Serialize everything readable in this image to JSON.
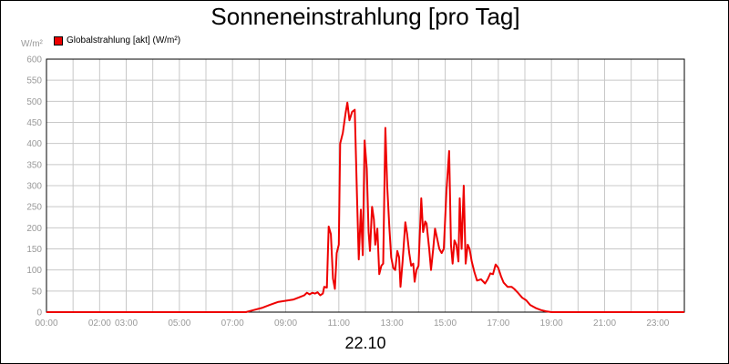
{
  "chart_data": {
    "type": "line",
    "title": "Sonneneinstrahlung [pro Tag]",
    "ylabel": "W/m²",
    "xlabel": "22.10",
    "ylim": [
      0,
      600
    ],
    "xlim": [
      0,
      24
    ],
    "grid": true,
    "legend_position": "top-left",
    "y_ticks": [
      "0",
      "50",
      "100",
      "150",
      "200",
      "250",
      "300",
      "350",
      "400",
      "450",
      "500",
      "550",
      "600"
    ],
    "x_ticks": [
      {
        "label": "00:00",
        "x": 0
      },
      {
        "label": "02:00",
        "x": 2
      },
      {
        "label": "03:00",
        "x": 3
      },
      {
        "label": "05:00",
        "x": 5
      },
      {
        "label": "07:00",
        "x": 7
      },
      {
        "label": "09:00",
        "x": 9
      },
      {
        "label": "11:00",
        "x": 11
      },
      {
        "label": "13:00",
        "x": 13
      },
      {
        "label": "15:00",
        "x": 15
      },
      {
        "label": "17:00",
        "x": 17
      },
      {
        "label": "19:00",
        "x": 19
      },
      {
        "label": "21:00",
        "x": 21
      },
      {
        "label": "23:00",
        "x": 23
      }
    ],
    "series": [
      {
        "name": "Globalstrahlung [akt] (W/m²)",
        "color": "#ee0000",
        "points": [
          [
            0,
            0
          ],
          [
            7.5,
            0
          ],
          [
            7.8,
            5
          ],
          [
            8.1,
            10
          ],
          [
            8.4,
            17
          ],
          [
            8.7,
            24
          ],
          [
            9.0,
            27
          ],
          [
            9.3,
            30
          ],
          [
            9.5,
            35
          ],
          [
            9.7,
            40
          ],
          [
            9.8,
            46
          ],
          [
            9.9,
            42
          ],
          [
            10.0,
            46
          ],
          [
            10.1,
            44
          ],
          [
            10.2,
            47
          ],
          [
            10.3,
            40
          ],
          [
            10.4,
            44
          ],
          [
            10.45,
            60
          ],
          [
            10.55,
            58
          ],
          [
            10.62,
            203
          ],
          [
            10.7,
            185
          ],
          [
            10.78,
            80
          ],
          [
            10.85,
            55
          ],
          [
            10.92,
            140
          ],
          [
            11.0,
            160
          ],
          [
            11.05,
            400
          ],
          [
            11.15,
            425
          ],
          [
            11.25,
            470
          ],
          [
            11.32,
            497
          ],
          [
            11.4,
            455
          ],
          [
            11.5,
            475
          ],
          [
            11.6,
            480
          ],
          [
            11.68,
            280
          ],
          [
            11.75,
            125
          ],
          [
            11.83,
            243
          ],
          [
            11.9,
            135
          ],
          [
            11.97,
            407
          ],
          [
            12.05,
            340
          ],
          [
            12.12,
            190
          ],
          [
            12.17,
            145
          ],
          [
            12.25,
            250
          ],
          [
            12.32,
            220
          ],
          [
            12.37,
            160
          ],
          [
            12.45,
            198
          ],
          [
            12.52,
            90
          ],
          [
            12.6,
            110
          ],
          [
            12.67,
            115
          ],
          [
            12.75,
            437
          ],
          [
            12.82,
            300
          ],
          [
            12.9,
            200
          ],
          [
            12.97,
            130
          ],
          [
            13.05,
            105
          ],
          [
            13.12,
            100
          ],
          [
            13.2,
            145
          ],
          [
            13.27,
            130
          ],
          [
            13.32,
            60
          ],
          [
            13.4,
            120
          ],
          [
            13.5,
            213
          ],
          [
            13.57,
            185
          ],
          [
            13.65,
            140
          ],
          [
            13.72,
            110
          ],
          [
            13.8,
            115
          ],
          [
            13.85,
            72
          ],
          [
            13.92,
            100
          ],
          [
            14.0,
            110
          ],
          [
            14.1,
            270
          ],
          [
            14.17,
            190
          ],
          [
            14.25,
            215
          ],
          [
            14.3,
            210
          ],
          [
            14.4,
            150
          ],
          [
            14.47,
            100
          ],
          [
            14.55,
            150
          ],
          [
            14.62,
            198
          ],
          [
            14.7,
            175
          ],
          [
            14.78,
            150
          ],
          [
            14.87,
            140
          ],
          [
            14.95,
            150
          ],
          [
            15.05,
            290
          ],
          [
            15.15,
            382
          ],
          [
            15.22,
            160
          ],
          [
            15.28,
            115
          ],
          [
            15.35,
            170
          ],
          [
            15.42,
            160
          ],
          [
            15.5,
            120
          ],
          [
            15.55,
            270
          ],
          [
            15.62,
            150
          ],
          [
            15.7,
            300
          ],
          [
            15.77,
            115
          ],
          [
            15.85,
            160
          ],
          [
            15.92,
            150
          ],
          [
            16.0,
            120
          ],
          [
            16.1,
            95
          ],
          [
            16.2,
            75
          ],
          [
            16.35,
            78
          ],
          [
            16.5,
            68
          ],
          [
            16.6,
            78
          ],
          [
            16.7,
            92
          ],
          [
            16.8,
            90
          ],
          [
            16.9,
            113
          ],
          [
            17.0,
            105
          ],
          [
            17.1,
            85
          ],
          [
            17.2,
            70
          ],
          [
            17.35,
            60
          ],
          [
            17.5,
            60
          ],
          [
            17.6,
            55
          ],
          [
            17.75,
            45
          ],
          [
            17.9,
            34
          ],
          [
            18.05,
            28
          ],
          [
            18.2,
            17
          ],
          [
            18.4,
            10
          ],
          [
            18.6,
            5
          ],
          [
            18.8,
            2
          ],
          [
            19.0,
            0
          ],
          [
            24,
            0
          ]
        ]
      }
    ]
  }
}
